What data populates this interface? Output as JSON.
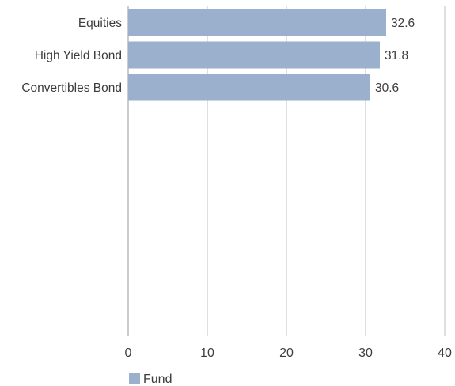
{
  "chart_data": {
    "type": "bar",
    "orientation": "horizontal",
    "categories": [
      "Equities",
      "High Yield Bond",
      "Convertibles Bond"
    ],
    "series": [
      {
        "name": "Fund",
        "values": [
          32.6,
          31.8,
          30.6
        ],
        "color": "#9bb0cc"
      }
    ],
    "xlim": [
      0,
      40
    ],
    "xticks": [
      0,
      10,
      20,
      30,
      40
    ],
    "xlabel": "",
    "ylabel": "",
    "title": "",
    "grid": true,
    "legend": {
      "position": "bottom-left"
    }
  }
}
